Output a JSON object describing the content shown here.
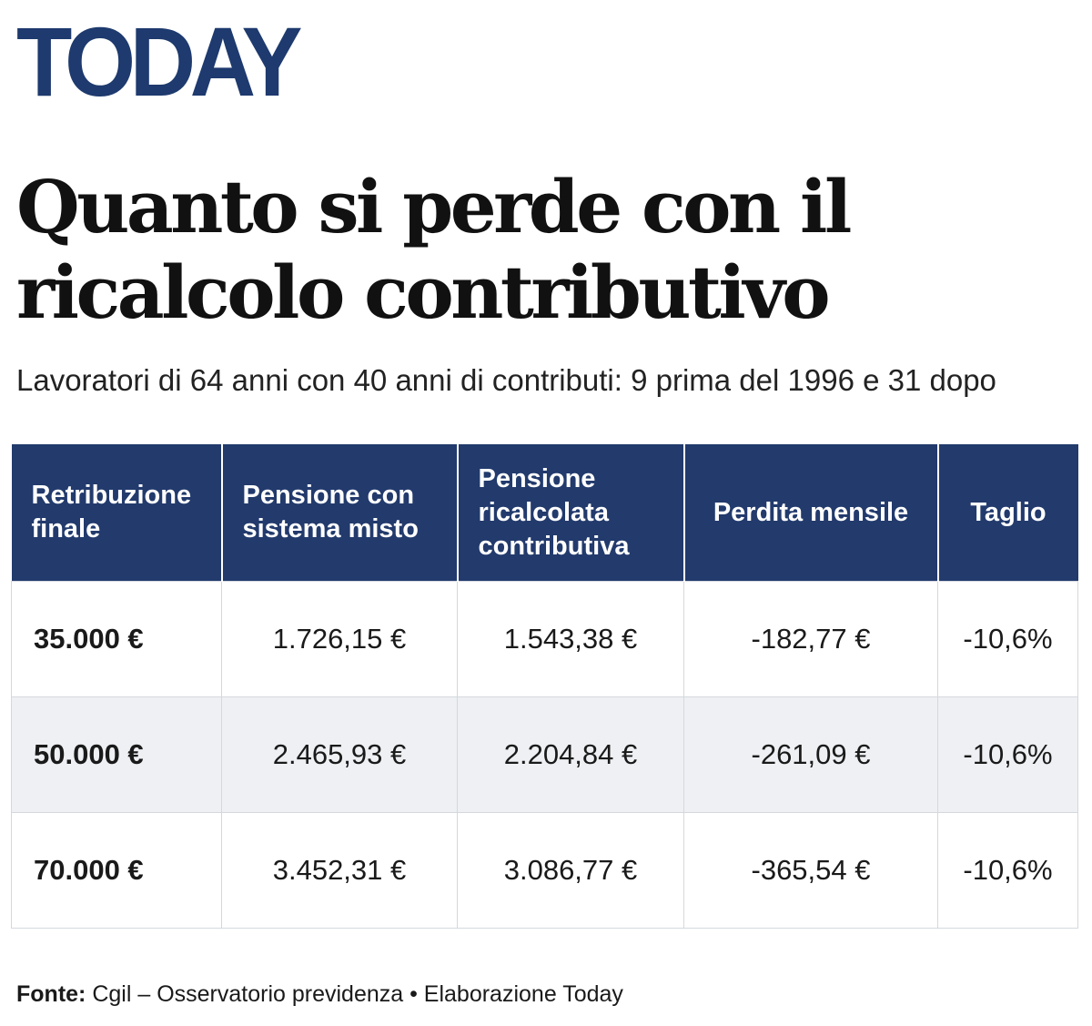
{
  "header": {
    "logo": "TODAY",
    "title": "Quanto si perde con il ricalcolo contributivo",
    "subtitle": "Lavoratori di 64 anni con 40 anni di contributi: 9 prima del 1996 e 31 dopo"
  },
  "colors": {
    "brand": "#1e3a6e",
    "header_bg": "#223a6c",
    "alt_row_bg": "#eef0f3"
  },
  "chart_data": {
    "type": "table",
    "title": "Quanto si perde con il ricalcolo contributivo",
    "subtitle": "Lavoratori di 64 anni con 40 anni di contributi: 9 prima del 1996 e 31 dopo",
    "columns": [
      "Retribuzione finale",
      "Pensione con sistema misto",
      "Pensione ricalcolata contributiva",
      "Perdita mensile",
      "Taglio"
    ],
    "rows": [
      [
        "35.000 €",
        "1.726,15 €",
        "1.543,38 €",
        "-182,77 €",
        "-10,6%"
      ],
      [
        "50.000 €",
        "2.465,93 €",
        "2.204,84 €",
        "-261,09 €",
        "-10,6%"
      ],
      [
        "70.000 €",
        "3.452,31 €",
        "3.086,77 €",
        "-365,54 €",
        "-10,6%"
      ]
    ]
  },
  "footer": {
    "source_label": "Fonte:",
    "source_text": "Cgil – Osservatorio previdenza • Elaborazione Today"
  }
}
